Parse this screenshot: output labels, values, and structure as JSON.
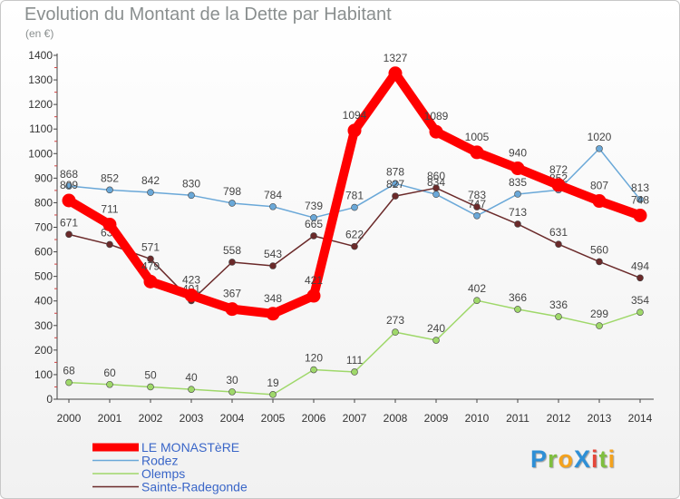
{
  "title": "Evolution du Montant de la Dette par Habitant",
  "subtitle": "(en €)",
  "logo": {
    "text": "ProXiti",
    "letters": [
      {
        "ch": "P",
        "color": "#2e8fd6"
      },
      {
        "ch": "r",
        "color": "#7fbf3f"
      },
      {
        "ch": "o",
        "color": "#f4a21d"
      },
      {
        "ch": "X",
        "color": "#2e8fd6"
      },
      {
        "ch": "i",
        "color": "#e5473a"
      },
      {
        "ch": "t",
        "color": "#7fbf3f"
      },
      {
        "ch": "i",
        "color": "#f4a21d"
      }
    ]
  },
  "chart_data": {
    "type": "line",
    "x": [
      "2000",
      "2001",
      "2002",
      "2003",
      "2004",
      "2005",
      "2006",
      "2007",
      "2008",
      "2009",
      "2010",
      "2011",
      "2012",
      "2013",
      "2014"
    ],
    "ylim": [
      0,
      1400
    ],
    "yticks": [
      0,
      100,
      200,
      300,
      400,
      500,
      600,
      700,
      800,
      900,
      1000,
      1100,
      1200,
      1300,
      1400
    ],
    "grid": false,
    "legend_position": "bottom-left",
    "series": [
      {
        "name": "LE MONASTèRE",
        "color": "#ff0000",
        "values": [
          809,
          711,
          479,
          423,
          367,
          348,
          421,
          1094,
          1327,
          1089,
          1005,
          940,
          872,
          807,
          748
        ]
      },
      {
        "name": "Rodez",
        "color": "#6aa8d8",
        "values": [
          868,
          852,
          842,
          830,
          798,
          784,
          739,
          781,
          878,
          834,
          747,
          835,
          852,
          1020,
          813
        ]
      },
      {
        "name": "Olemps",
        "color": "#9fd86a",
        "values": [
          68,
          60,
          50,
          40,
          30,
          19,
          120,
          111,
          273,
          240,
          402,
          366,
          336,
          299,
          354
        ]
      },
      {
        "name": "Sainte-Radegonde",
        "color": "#6b2a2a",
        "values": [
          671,
          630,
          571,
          401,
          558,
          543,
          665,
          622,
          827,
          860,
          783,
          713,
          631,
          560,
          494
        ]
      }
    ]
  }
}
